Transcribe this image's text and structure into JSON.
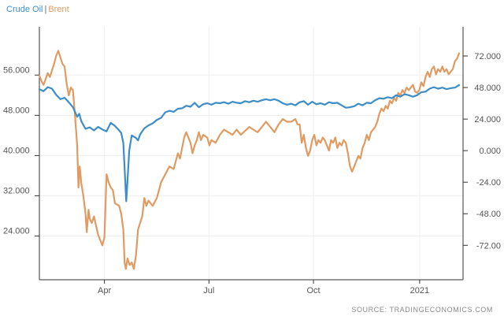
{
  "legend": {
    "crude": "Crude Oil",
    "separator": "|",
    "brent": "Brent"
  },
  "source": "SOURCE: TRADINGECONOMICS.COM",
  "chart_data": {
    "type": "line",
    "title": "",
    "xlabel": "",
    "grid": true,
    "x_ticks": [
      {
        "label": "Apr",
        "t": 0.155
      },
      {
        "label": "Jul",
        "t": 0.404
      },
      {
        "label": "Oct",
        "t": 0.653
      },
      {
        "label": "2021",
        "t": 0.906
      }
    ],
    "axes": {
      "left": {
        "ylim": [
          15.3,
          65.6
        ],
        "ticks": [
          24,
          32,
          40,
          48,
          56
        ],
        "labels": [
          "24.000",
          "32.000",
          "40.000",
          "48.000",
          "56.000"
        ]
      },
      "right": {
        "ylim": [
          -98.2,
          94.2
        ],
        "ticks": [
          -72,
          -48,
          -24,
          0,
          24,
          48,
          72
        ],
        "labels": [
          "-72.00",
          "-48.00",
          "-24.00",
          "0.000",
          "24.000",
          "48.000",
          "72.000"
        ]
      }
    },
    "series": [
      {
        "name": "Crude Oil",
        "axis": "left",
        "color": "#3d8ec7",
        "points": [
          [
            0.0,
            53.2
          ],
          [
            0.01,
            52.8
          ],
          [
            0.02,
            53.6
          ],
          [
            0.03,
            53.3
          ],
          [
            0.04,
            52.1
          ],
          [
            0.05,
            51.2
          ],
          [
            0.06,
            51.5
          ],
          [
            0.07,
            50.6
          ],
          [
            0.08,
            49.6
          ],
          [
            0.09,
            47.7
          ],
          [
            0.095,
            48.3
          ],
          [
            0.1,
            46.8
          ],
          [
            0.11,
            45.3
          ],
          [
            0.12,
            45.6
          ],
          [
            0.13,
            45.0
          ],
          [
            0.14,
            45.7
          ],
          [
            0.15,
            45.2
          ],
          [
            0.16,
            44.8
          ],
          [
            0.17,
            46.5
          ],
          [
            0.18,
            45.9
          ],
          [
            0.19,
            45.0
          ],
          [
            0.195,
            44.5
          ],
          [
            0.2,
            42.5
          ],
          [
            0.204,
            36.0
          ],
          [
            0.207,
            30.9
          ],
          [
            0.21,
            35.0
          ],
          [
            0.214,
            41.0
          ],
          [
            0.22,
            44.0
          ],
          [
            0.23,
            43.5
          ],
          [
            0.235,
            43.0
          ],
          [
            0.24,
            44.2
          ],
          [
            0.25,
            45.4
          ],
          [
            0.26,
            46.0
          ],
          [
            0.27,
            46.4
          ],
          [
            0.28,
            47.1
          ],
          [
            0.29,
            47.5
          ],
          [
            0.3,
            48.6
          ],
          [
            0.31,
            48.9
          ],
          [
            0.32,
            48.7
          ],
          [
            0.33,
            49.3
          ],
          [
            0.34,
            49.4
          ],
          [
            0.35,
            49.9
          ],
          [
            0.36,
            49.7
          ],
          [
            0.37,
            50.5
          ],
          [
            0.38,
            49.6
          ],
          [
            0.39,
            50.2
          ],
          [
            0.4,
            50.4
          ],
          [
            0.41,
            50.1
          ],
          [
            0.42,
            50.5
          ],
          [
            0.43,
            50.4
          ],
          [
            0.44,
            50.6
          ],
          [
            0.45,
            50.3
          ],
          [
            0.46,
            50.7
          ],
          [
            0.47,
            50.5
          ],
          [
            0.48,
            50.4
          ],
          [
            0.49,
            50.8
          ],
          [
            0.5,
            50.6
          ],
          [
            0.51,
            50.9
          ],
          [
            0.52,
            50.7
          ],
          [
            0.53,
            51.0
          ],
          [
            0.54,
            51.2
          ],
          [
            0.55,
            51.0
          ],
          [
            0.56,
            51.2
          ],
          [
            0.57,
            50.9
          ],
          [
            0.58,
            50.4
          ],
          [
            0.59,
            50.1
          ],
          [
            0.6,
            50.3
          ],
          [
            0.61,
            50.0
          ],
          [
            0.62,
            50.6
          ],
          [
            0.63,
            50.8
          ],
          [
            0.64,
            50.1
          ],
          [
            0.65,
            50.7
          ],
          [
            0.66,
            50.2
          ],
          [
            0.67,
            50.4
          ],
          [
            0.68,
            50.1
          ],
          [
            0.69,
            50.6
          ],
          [
            0.7,
            50.4
          ],
          [
            0.71,
            50.5
          ],
          [
            0.72,
            50.0
          ],
          [
            0.73,
            49.5
          ],
          [
            0.74,
            49.6
          ],
          [
            0.75,
            49.8
          ],
          [
            0.76,
            50.3
          ],
          [
            0.77,
            50.0
          ],
          [
            0.78,
            50.5
          ],
          [
            0.79,
            50.4
          ],
          [
            0.8,
            51.0
          ],
          [
            0.81,
            51.4
          ],
          [
            0.82,
            51.3
          ],
          [
            0.83,
            51.6
          ],
          [
            0.84,
            51.4
          ],
          [
            0.85,
            52.0
          ],
          [
            0.86,
            51.7
          ],
          [
            0.87,
            52.2
          ],
          [
            0.88,
            52.0
          ],
          [
            0.89,
            51.7
          ],
          [
            0.9,
            52.0
          ],
          [
            0.91,
            52.6
          ],
          [
            0.92,
            52.7
          ],
          [
            0.93,
            53.3
          ],
          [
            0.94,
            53.6
          ],
          [
            0.95,
            53.3
          ],
          [
            0.96,
            53.5
          ],
          [
            0.97,
            53.2
          ],
          [
            0.98,
            53.4
          ],
          [
            0.99,
            53.5
          ],
          [
            1.0,
            54.0
          ]
        ]
      },
      {
        "name": "Brent",
        "axis": "right",
        "color": "#e09b63",
        "points": [
          [
            0.0,
            57
          ],
          [
            0.005,
            53
          ],
          [
            0.01,
            50
          ],
          [
            0.02,
            59
          ],
          [
            0.025,
            56
          ],
          [
            0.03,
            61
          ],
          [
            0.035,
            66
          ],
          [
            0.04,
            72
          ],
          [
            0.045,
            76
          ],
          [
            0.048,
            73
          ],
          [
            0.055,
            66
          ],
          [
            0.06,
            64
          ],
          [
            0.065,
            51
          ],
          [
            0.07,
            42
          ],
          [
            0.075,
            48
          ],
          [
            0.08,
            46
          ],
          [
            0.085,
            26
          ],
          [
            0.09,
            4
          ],
          [
            0.093,
            -28
          ],
          [
            0.096,
            -12
          ],
          [
            0.1,
            -25
          ],
          [
            0.105,
            -35
          ],
          [
            0.11,
            -48
          ],
          [
            0.113,
            -62
          ],
          [
            0.117,
            -45
          ],
          [
            0.12,
            -52
          ],
          [
            0.125,
            -55
          ],
          [
            0.13,
            -50
          ],
          [
            0.14,
            -64
          ],
          [
            0.15,
            -72
          ],
          [
            0.155,
            -66
          ],
          [
            0.16,
            -18
          ],
          [
            0.165,
            -24
          ],
          [
            0.17,
            -28
          ],
          [
            0.175,
            -30
          ],
          [
            0.18,
            -40
          ],
          [
            0.19,
            -42
          ],
          [
            0.195,
            -48
          ],
          [
            0.2,
            -60
          ],
          [
            0.203,
            -85
          ],
          [
            0.206,
            -90
          ],
          [
            0.21,
            -82
          ],
          [
            0.215,
            -87
          ],
          [
            0.22,
            -85
          ],
          [
            0.225,
            -90
          ],
          [
            0.23,
            -80
          ],
          [
            0.235,
            -60
          ],
          [
            0.24,
            -55
          ],
          [
            0.245,
            -50
          ],
          [
            0.25,
            -36
          ],
          [
            0.255,
            -42
          ],
          [
            0.26,
            -38
          ],
          [
            0.265,
            -40
          ],
          [
            0.27,
            -42
          ],
          [
            0.28,
            -36
          ],
          [
            0.29,
            -24
          ],
          [
            0.3,
            -18
          ],
          [
            0.31,
            -12
          ],
          [
            0.32,
            -14
          ],
          [
            0.325,
            -8
          ],
          [
            0.33,
            -2
          ],
          [
            0.335,
            -6
          ],
          [
            0.34,
            2
          ],
          [
            0.345,
            10
          ],
          [
            0.35,
            14
          ],
          [
            0.355,
            10
          ],
          [
            0.36,
            6
          ],
          [
            0.365,
            -2
          ],
          [
            0.37,
            4
          ],
          [
            0.375,
            8
          ],
          [
            0.38,
            14
          ],
          [
            0.385,
            8
          ],
          [
            0.39,
            12
          ],
          [
            0.4,
            10
          ],
          [
            0.405,
            4
          ],
          [
            0.41,
            8
          ],
          [
            0.42,
            6
          ],
          [
            0.43,
            12
          ],
          [
            0.44,
            16
          ],
          [
            0.45,
            14
          ],
          [
            0.46,
            12
          ],
          [
            0.47,
            16
          ],
          [
            0.48,
            12
          ],
          [
            0.49,
            15
          ],
          [
            0.5,
            18
          ],
          [
            0.51,
            16
          ],
          [
            0.52,
            14
          ],
          [
            0.53,
            18
          ],
          [
            0.54,
            22
          ],
          [
            0.55,
            18
          ],
          [
            0.56,
            14
          ],
          [
            0.57,
            20
          ],
          [
            0.58,
            24
          ],
          [
            0.59,
            22
          ],
          [
            0.6,
            22
          ],
          [
            0.61,
            24
          ],
          [
            0.615,
            20
          ],
          [
            0.62,
            20
          ],
          [
            0.625,
            6
          ],
          [
            0.63,
            12
          ],
          [
            0.635,
            2
          ],
          [
            0.64,
            -4
          ],
          [
            0.645,
            0
          ],
          [
            0.65,
            8
          ],
          [
            0.655,
            12
          ],
          [
            0.66,
            4
          ],
          [
            0.665,
            8
          ],
          [
            0.67,
            6
          ],
          [
            0.675,
            10
          ],
          [
            0.68,
            8
          ],
          [
            0.685,
            4
          ],
          [
            0.69,
            0
          ],
          [
            0.695,
            8
          ],
          [
            0.7,
            6
          ],
          [
            0.705,
            10
          ],
          [
            0.71,
            2
          ],
          [
            0.715,
            6
          ],
          [
            0.72,
            4
          ],
          [
            0.725,
            8
          ],
          [
            0.73,
            6
          ],
          [
            0.735,
            -2
          ],
          [
            0.74,
            -12
          ],
          [
            0.745,
            -16
          ],
          [
            0.75,
            -12
          ],
          [
            0.755,
            -8
          ],
          [
            0.76,
            -4
          ],
          [
            0.765,
            -6
          ],
          [
            0.77,
            2
          ],
          [
            0.775,
            6
          ],
          [
            0.78,
            12
          ],
          [
            0.785,
            8
          ],
          [
            0.79,
            14
          ],
          [
            0.8,
            18
          ],
          [
            0.805,
            22
          ],
          [
            0.81,
            28
          ],
          [
            0.815,
            32
          ],
          [
            0.82,
            30
          ],
          [
            0.825,
            34
          ],
          [
            0.83,
            32
          ],
          [
            0.835,
            38
          ],
          [
            0.84,
            36
          ],
          [
            0.845,
            40
          ],
          [
            0.85,
            38
          ],
          [
            0.855,
            44
          ],
          [
            0.86,
            42
          ],
          [
            0.865,
            46
          ],
          [
            0.87,
            44
          ],
          [
            0.875,
            48
          ],
          [
            0.88,
            46
          ],
          [
            0.885,
            48
          ],
          [
            0.89,
            50
          ],
          [
            0.895,
            45
          ],
          [
            0.9,
            44
          ],
          [
            0.905,
            46
          ],
          [
            0.91,
            52
          ],
          [
            0.915,
            49
          ],
          [
            0.92,
            56
          ],
          [
            0.925,
            60
          ],
          [
            0.93,
            56
          ],
          [
            0.935,
            62
          ],
          [
            0.94,
            64
          ],
          [
            0.945,
            58
          ],
          [
            0.95,
            62
          ],
          [
            0.955,
            60
          ],
          [
            0.96,
            64
          ],
          [
            0.965,
            60
          ],
          [
            0.97,
            62
          ],
          [
            0.975,
            58
          ],
          [
            0.98,
            60
          ],
          [
            0.985,
            62
          ],
          [
            0.99,
            68
          ],
          [
            0.995,
            70
          ],
          [
            1.0,
            74
          ]
        ]
      }
    ]
  }
}
